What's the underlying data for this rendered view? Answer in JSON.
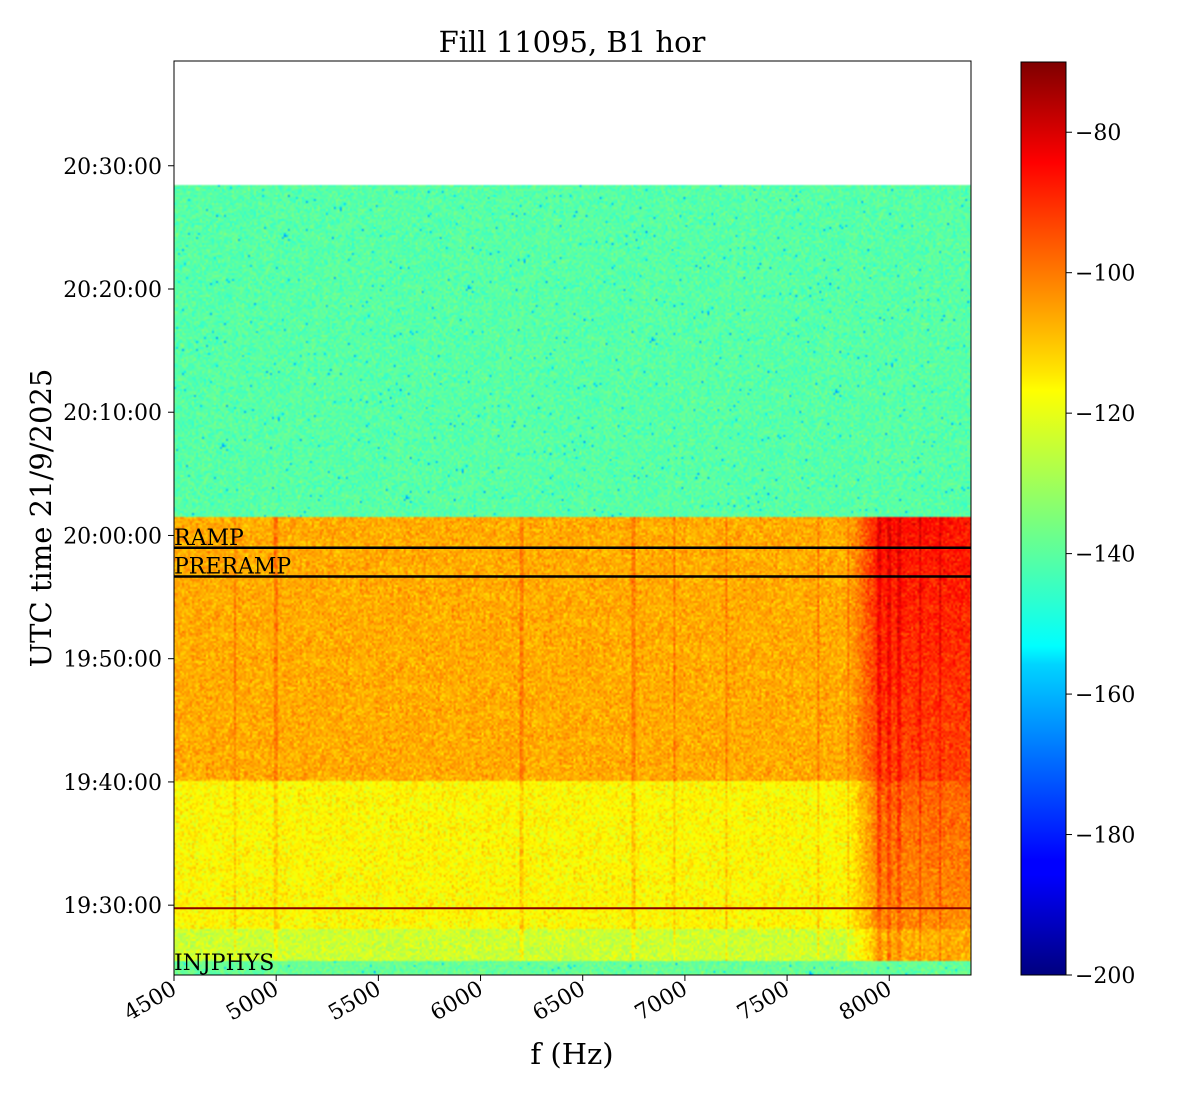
{
  "chart_data": {
    "type": "heatmap",
    "title": "Fill 11095, B1 hor",
    "xlabel": "f (Hz)",
    "ylabel": "UTC time 21/9/2025",
    "xlim": [
      4500,
      8400
    ],
    "xticks": [
      4500,
      5000,
      5500,
      6000,
      6500,
      7000,
      7500,
      8000
    ],
    "xtick_labels": [
      "4500",
      "5000",
      "5500",
      "6000",
      "6500",
      "7000",
      "7500",
      "8000"
    ],
    "ylim": [
      "19:24:20",
      "20:38:30"
    ],
    "yticks": [
      "19:30:00",
      "19:40:00",
      "19:50:00",
      "20:00:00",
      "20:10:00",
      "20:20:00",
      "20:30:00"
    ],
    "data_time_range": [
      "19:24:20",
      "20:28:30"
    ],
    "colormap": "jet",
    "colorbar": {
      "range": [
        -200,
        -70
      ],
      "ticks": [
        -80,
        -100,
        -120,
        -140,
        -160,
        -180,
        -200
      ],
      "tick_labels": [
        "−80",
        "−100",
        "−120",
        "−140",
        "−160",
        "−180",
        "−200"
      ]
    },
    "regions": [
      {
        "from": "19:24:20",
        "to": "19:25:30",
        "level_dB": -138
      },
      {
        "from": "19:25:30",
        "to": "19:28:00",
        "level_dB": -125
      },
      {
        "from": "19:28:00",
        "to": "19:40:00",
        "level_dB": -118
      },
      {
        "from": "19:40:00",
        "to": "20:01:30",
        "level_dB": -108
      },
      {
        "from": "20:01:30",
        "to": "20:28:30",
        "level_dB": -140
      }
    ],
    "spectral_lines_Hz": [
      4800,
      5000,
      6200,
      6750,
      6950,
      7200,
      7650,
      7800,
      7950,
      8000,
      8050,
      8150,
      8250
    ],
    "hot_band_Hz": [
      7800,
      8400
    ],
    "hot_band_level_dB": -88,
    "markers": [
      {
        "label": "RAMP",
        "time": "19:59:00"
      },
      {
        "label": "PRERAMP",
        "time": "19:56:40"
      },
      {
        "label": "INJPHYS",
        "time": "19:24:30"
      }
    ],
    "hlines": [
      {
        "time": "19:29:45",
        "color": "#8b0000"
      }
    ]
  }
}
